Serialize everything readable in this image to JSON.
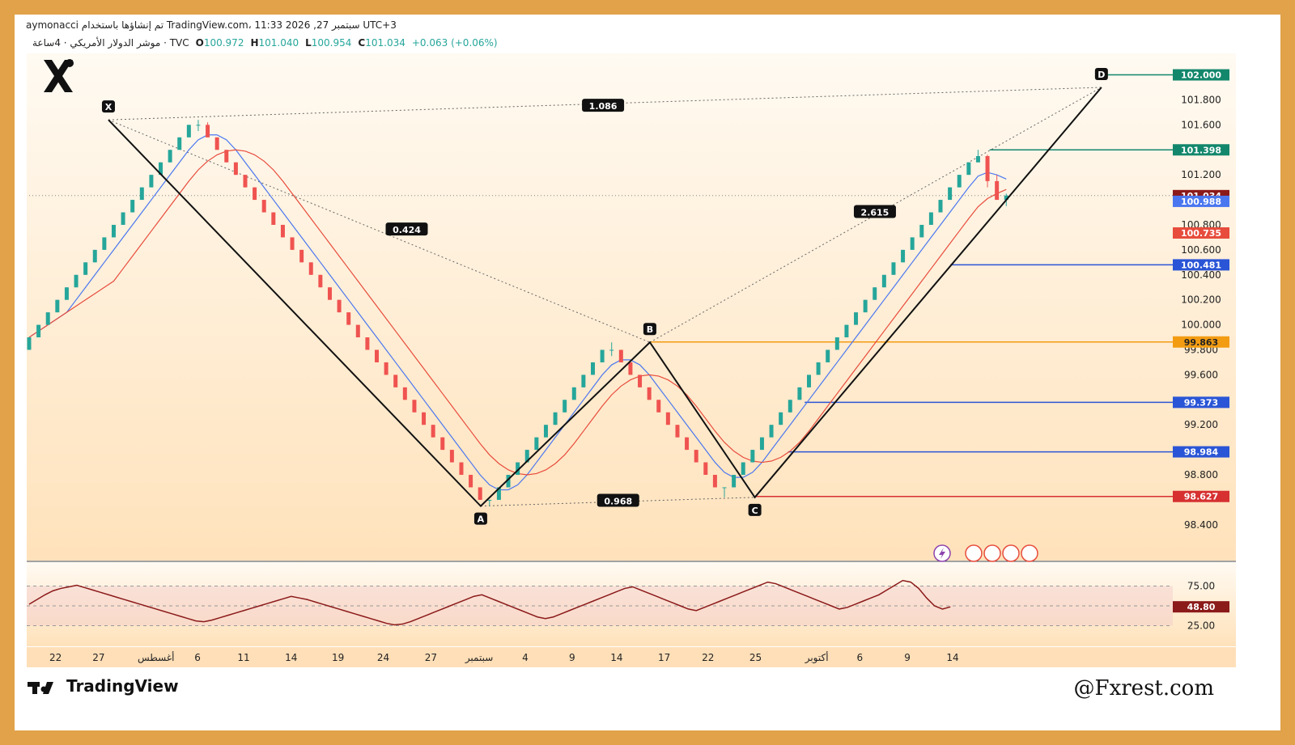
{
  "header": {
    "line1": "aymonacci تم إنشاؤها باستخدام TradingView.com، 11:33 2026 ,27 سبتمبر UTC+3",
    "symbol": "موشر الدولار الأمريكي · 4ساعة · TVC",
    "ohlc": [
      {
        "k": "O",
        "v": "100.972"
      },
      {
        "k": "H",
        "v": "101.040"
      },
      {
        "k": "L",
        "v": "100.954"
      },
      {
        "k": "C",
        "v": "101.034"
      }
    ],
    "change": "+0.063 (+0.06%)"
  },
  "branding": {
    "tradingview": "TradingView",
    "watermark": "@Fxrest.com"
  },
  "colors": {
    "up": "#26a69a",
    "down": "#ef5350",
    "ma_fast": "#4a77f0",
    "ma_slow": "#e74c3c",
    "orange": "#f39c12",
    "green_line": "#13876c",
    "blue_line": "#2a55d6",
    "red_line": "#d63031",
    "rsi": "#8b1a1a",
    "frame": "#e1a24a"
  },
  "chart_data": {
    "type": "candlestick",
    "pattern_points": [
      {
        "label": "X",
        "t": 10.5,
        "price": 101.64
      },
      {
        "label": "A",
        "t": 59.8,
        "price": 98.55
      },
      {
        "label": "B",
        "t": 82.2,
        "price": 99.86
      },
      {
        "label": "C",
        "t": 96.1,
        "price": 98.62
      },
      {
        "label": "D",
        "t": 142.0,
        "price": 101.9
      }
    ],
    "ratios": [
      {
        "label": "1.086",
        "t": 76.0,
        "price": 101.75
      },
      {
        "label": "0.424",
        "t": 50.0,
        "price": 100.76
      },
      {
        "label": "0.968",
        "t": 78.0,
        "price": 98.59
      },
      {
        "label": "2.615",
        "t": 112.0,
        "price": 100.9
      }
    ],
    "price_levels": [
      {
        "label": "102.000",
        "price": 102.0,
        "color": "green_line",
        "from_t": 142
      },
      {
        "label": "101.398",
        "price": 101.4,
        "color": "green_line",
        "from_t": 127.2
      },
      {
        "label": "101.034",
        "price": 101.034,
        "color": "dark_red_badge",
        "from_t": 0
      },
      {
        "label": "100.988",
        "price": 100.988,
        "color": "ma_fast_badge",
        "from_t": -1
      },
      {
        "label": "100.735",
        "price": 100.735,
        "color": "ma_slow_badge",
        "from_t": -1
      },
      {
        "label": "100.481",
        "price": 100.48,
        "color": "blue_line",
        "from_t": 122
      },
      {
        "label": "99.863",
        "price": 99.863,
        "color": "orange",
        "from_t": 82.2
      },
      {
        "label": "99.373",
        "price": 99.38,
        "color": "blue_line",
        "from_t": 102.7
      },
      {
        "label": "98.984",
        "price": 98.984,
        "color": "blue_line",
        "from_t": 100.5
      },
      {
        "label": "98.627",
        "price": 98.627,
        "color": "red_line",
        "from_t": 96.1
      }
    ],
    "y_ticks": [
      "101.800",
      "101.600",
      "101.200",
      "100.800",
      "100.600",
      "100.400",
      "100.200",
      "100.000",
      "99.800",
      "99.600",
      "99.200",
      "98.800",
      "98.400"
    ],
    "y_tick_values": [
      101.8,
      101.6,
      101.2,
      100.8,
      100.6,
      100.4,
      100.2,
      100.0,
      99.8,
      99.6,
      99.2,
      98.8,
      98.4
    ],
    "ylim": [
      98.25,
      102.12
    ],
    "x_ticks": [
      {
        "label": "22",
        "t": 3.5
      },
      {
        "label": "27",
        "t": 9.2
      },
      {
        "label": "أغسطس",
        "t": 16.8
      },
      {
        "label": "6",
        "t": 22.3
      },
      {
        "label": "11",
        "t": 28.4
      },
      {
        "label": "14",
        "t": 34.7
      },
      {
        "label": "19",
        "t": 40.9
      },
      {
        "label": "24",
        "t": 46.9
      },
      {
        "label": "27",
        "t": 53.2
      },
      {
        "label": "سبتمبر",
        "t": 59.6
      },
      {
        "label": "4",
        "t": 65.7
      },
      {
        "label": "9",
        "t": 71.9
      },
      {
        "label": "14",
        "t": 77.8
      },
      {
        "label": "17",
        "t": 84.1
      },
      {
        "label": "22",
        "t": 89.9
      },
      {
        "label": "25",
        "t": 96.2
      },
      {
        "label": "أكتوبر",
        "t": 104.3
      },
      {
        "label": "6",
        "t": 110.0
      },
      {
        "label": "9",
        "t": 116.3
      },
      {
        "label": "14",
        "t": 122.3
      }
    ],
    "rsi": {
      "ticks": [
        "75.00",
        "25.00"
      ],
      "tick_values": [
        75,
        25
      ],
      "mid": 50,
      "current_label": "48.80",
      "current": 48.8
    },
    "candles": [
      [
        99.8,
        99.9,
        99.8,
        99.9
      ],
      [
        99.9,
        100.0,
        99.9,
        100.0
      ],
      [
        100.0,
        100.1,
        100.0,
        100.1
      ],
      [
        100.1,
        100.2,
        100.1,
        100.2
      ],
      [
        100.2,
        100.3,
        100.2,
        100.3
      ],
      [
        100.3,
        100.4,
        100.3,
        100.4
      ],
      [
        100.4,
        100.5,
        100.4,
        100.5
      ],
      [
        100.5,
        100.6,
        100.5,
        100.6
      ],
      [
        100.6,
        100.7,
        100.6,
        100.7
      ],
      [
        100.7,
        100.8,
        100.7,
        100.8
      ],
      [
        100.8,
        100.9,
        100.8,
        100.9
      ],
      [
        100.9,
        101.0,
        100.9,
        101.0
      ],
      [
        101.0,
        101.1,
        101.0,
        101.1
      ],
      [
        101.1,
        101.2,
        101.1,
        101.2
      ],
      [
        101.2,
        101.3,
        101.2,
        101.3
      ],
      [
        101.3,
        101.4,
        101.3,
        101.4
      ],
      [
        101.4,
        101.5,
        101.4,
        101.5
      ],
      [
        101.5,
        101.6,
        101.5,
        101.6
      ],
      [
        101.6,
        101.64,
        101.55,
        101.6
      ],
      [
        101.6,
        101.62,
        101.5,
        101.5
      ],
      [
        101.5,
        101.5,
        101.4,
        101.4
      ],
      [
        101.4,
        101.4,
        101.3,
        101.3
      ],
      [
        101.3,
        101.3,
        101.2,
        101.2
      ],
      [
        101.2,
        101.2,
        101.1,
        101.1
      ],
      [
        101.1,
        101.1,
        101.0,
        101.0
      ],
      [
        101.0,
        101.0,
        100.9,
        100.9
      ],
      [
        100.9,
        100.9,
        100.8,
        100.8
      ],
      [
        100.8,
        100.8,
        100.7,
        100.7
      ],
      [
        100.7,
        100.7,
        100.6,
        100.6
      ],
      [
        100.6,
        100.6,
        100.5,
        100.5
      ],
      [
        100.5,
        100.5,
        100.4,
        100.4
      ],
      [
        100.4,
        100.4,
        100.3,
        100.3
      ],
      [
        100.3,
        100.3,
        100.2,
        100.2
      ],
      [
        100.2,
        100.2,
        100.1,
        100.1
      ],
      [
        100.1,
        100.1,
        100.0,
        100.0
      ],
      [
        100.0,
        100.0,
        99.9,
        99.9
      ],
      [
        99.9,
        99.9,
        99.8,
        99.8
      ],
      [
        99.8,
        99.8,
        99.7,
        99.7
      ],
      [
        99.7,
        99.7,
        99.6,
        99.6
      ],
      [
        99.6,
        99.6,
        99.5,
        99.5
      ],
      [
        99.5,
        99.5,
        99.4,
        99.4
      ],
      [
        99.4,
        99.4,
        99.3,
        99.3
      ],
      [
        99.3,
        99.3,
        99.2,
        99.2
      ],
      [
        99.2,
        99.2,
        99.1,
        99.1
      ],
      [
        99.1,
        99.1,
        99.0,
        99.0
      ],
      [
        99.0,
        99.0,
        98.9,
        98.9
      ],
      [
        98.9,
        98.9,
        98.8,
        98.8
      ],
      [
        98.8,
        98.8,
        98.7,
        98.7
      ],
      [
        98.7,
        98.7,
        98.6,
        98.6
      ],
      [
        98.6,
        98.6,
        98.55,
        98.6
      ],
      [
        98.6,
        98.7,
        98.6,
        98.7
      ],
      [
        98.7,
        98.8,
        98.7,
        98.8
      ],
      [
        98.8,
        98.9,
        98.8,
        98.9
      ],
      [
        98.9,
        99.0,
        98.9,
        99.0
      ],
      [
        99.0,
        99.1,
        99.0,
        99.1
      ],
      [
        99.1,
        99.2,
        99.1,
        99.2
      ],
      [
        99.2,
        99.3,
        99.2,
        99.3
      ],
      [
        99.3,
        99.4,
        99.3,
        99.4
      ],
      [
        99.4,
        99.5,
        99.4,
        99.5
      ],
      [
        99.5,
        99.6,
        99.5,
        99.6
      ],
      [
        99.6,
        99.7,
        99.6,
        99.7
      ],
      [
        99.7,
        99.8,
        99.7,
        99.8
      ],
      [
        99.8,
        99.86,
        99.75,
        99.8
      ],
      [
        99.8,
        99.8,
        99.7,
        99.7
      ],
      [
        99.7,
        99.7,
        99.6,
        99.6
      ],
      [
        99.6,
        99.6,
        99.5,
        99.5
      ],
      [
        99.5,
        99.5,
        99.4,
        99.4
      ],
      [
        99.4,
        99.4,
        99.3,
        99.3
      ],
      [
        99.3,
        99.3,
        99.2,
        99.2
      ],
      [
        99.2,
        99.2,
        99.1,
        99.1
      ],
      [
        99.1,
        99.1,
        99.0,
        99.0
      ],
      [
        99.0,
        99.0,
        98.9,
        98.9
      ],
      [
        98.9,
        98.9,
        98.8,
        98.8
      ],
      [
        98.8,
        98.8,
        98.7,
        98.7
      ],
      [
        98.7,
        98.7,
        98.62,
        98.7
      ],
      [
        98.7,
        98.8,
        98.7,
        98.8
      ],
      [
        98.8,
        98.9,
        98.8,
        98.9
      ],
      [
        98.9,
        99.0,
        98.9,
        99.0
      ],
      [
        99.0,
        99.1,
        99.0,
        99.1
      ],
      [
        99.1,
        99.2,
        99.1,
        99.2
      ],
      [
        99.2,
        99.3,
        99.2,
        99.3
      ],
      [
        99.3,
        99.4,
        99.3,
        99.4
      ],
      [
        99.4,
        99.5,
        99.4,
        99.5
      ],
      [
        99.5,
        99.6,
        99.5,
        99.6
      ],
      [
        99.6,
        99.7,
        99.6,
        99.7
      ],
      [
        99.7,
        99.8,
        99.7,
        99.8
      ],
      [
        99.8,
        99.9,
        99.8,
        99.9
      ],
      [
        99.9,
        100.0,
        99.9,
        100.0
      ],
      [
        100.0,
        100.1,
        100.0,
        100.1
      ],
      [
        100.1,
        100.2,
        100.1,
        100.2
      ],
      [
        100.2,
        100.3,
        100.2,
        100.3
      ],
      [
        100.3,
        100.4,
        100.3,
        100.4
      ],
      [
        100.4,
        100.5,
        100.4,
        100.5
      ],
      [
        100.5,
        100.6,
        100.5,
        100.6
      ],
      [
        100.6,
        100.7,
        100.6,
        100.7
      ],
      [
        100.7,
        100.8,
        100.7,
        100.8
      ],
      [
        100.8,
        100.9,
        100.8,
        100.9
      ],
      [
        100.9,
        101.0,
        100.9,
        101.0
      ],
      [
        101.0,
        101.1,
        101.0,
        101.1
      ],
      [
        101.1,
        101.2,
        101.1,
        101.2
      ],
      [
        101.2,
        101.3,
        101.2,
        101.3
      ],
      [
        101.3,
        101.4,
        101.3,
        101.35
      ],
      [
        101.35,
        101.36,
        101.1,
        101.15
      ],
      [
        101.15,
        101.2,
        101.0,
        101.0
      ],
      [
        101.0,
        101.05,
        100.95,
        101.034
      ]
    ],
    "rsi_values": [
      52,
      58,
      64,
      69,
      72,
      74,
      76,
      73,
      70,
      67,
      64,
      61,
      58,
      55,
      52,
      49,
      46,
      43,
      40,
      37,
      34,
      31,
      30,
      32,
      35,
      38,
      41,
      44,
      47,
      50,
      53,
      56,
      59,
      62,
      60,
      58,
      55,
      52,
      49,
      46,
      43,
      40,
      37,
      34,
      31,
      28,
      26,
      27,
      30,
      34,
      38,
      42,
      46,
      50,
      54,
      58,
      62,
      64,
      60,
      56,
      52,
      48,
      44,
      40,
      36,
      34,
      36,
      40,
      44,
      48,
      52,
      56,
      60,
      64,
      68,
      72,
      74,
      70,
      66,
      62,
      58,
      54,
      50,
      46,
      44,
      48,
      52,
      56,
      60,
      64,
      68,
      72,
      76,
      80,
      78,
      74,
      70,
      66,
      62,
      58,
      54,
      50,
      46,
      48,
      52,
      56,
      60,
      64,
      70,
      76,
      82,
      80,
      72,
      60,
      50,
      46,
      48.8
    ]
  }
}
